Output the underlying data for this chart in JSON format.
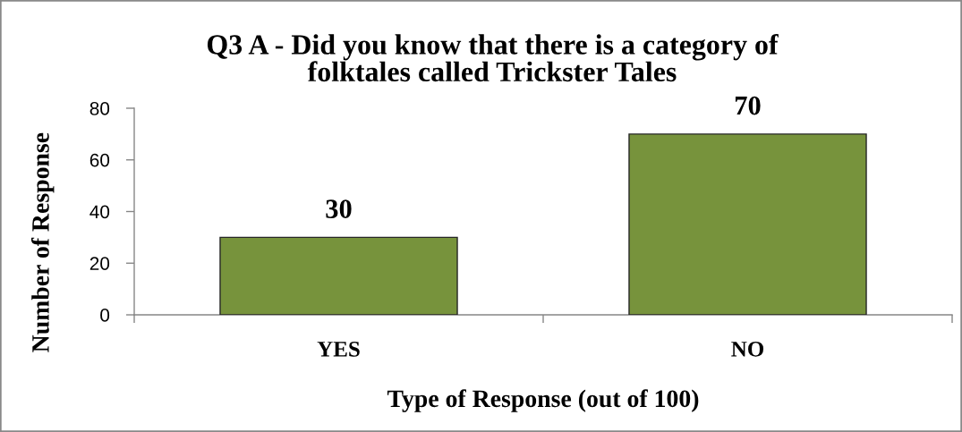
{
  "chart_data": {
    "type": "bar",
    "title": "Q3 A - Did you know that there is a category of\nfolktales called Trickster Tales",
    "xlabel": "Type of Response (out of 100)",
    "ylabel": "Number of Response",
    "categories": [
      "YES",
      "NO"
    ],
    "values": [
      30,
      70
    ],
    "color": "#77933c",
    "ylim": [
      0,
      80
    ],
    "yticks": [
      0,
      20,
      40,
      60,
      80
    ],
    "grid": false,
    "data_labels": true
  }
}
